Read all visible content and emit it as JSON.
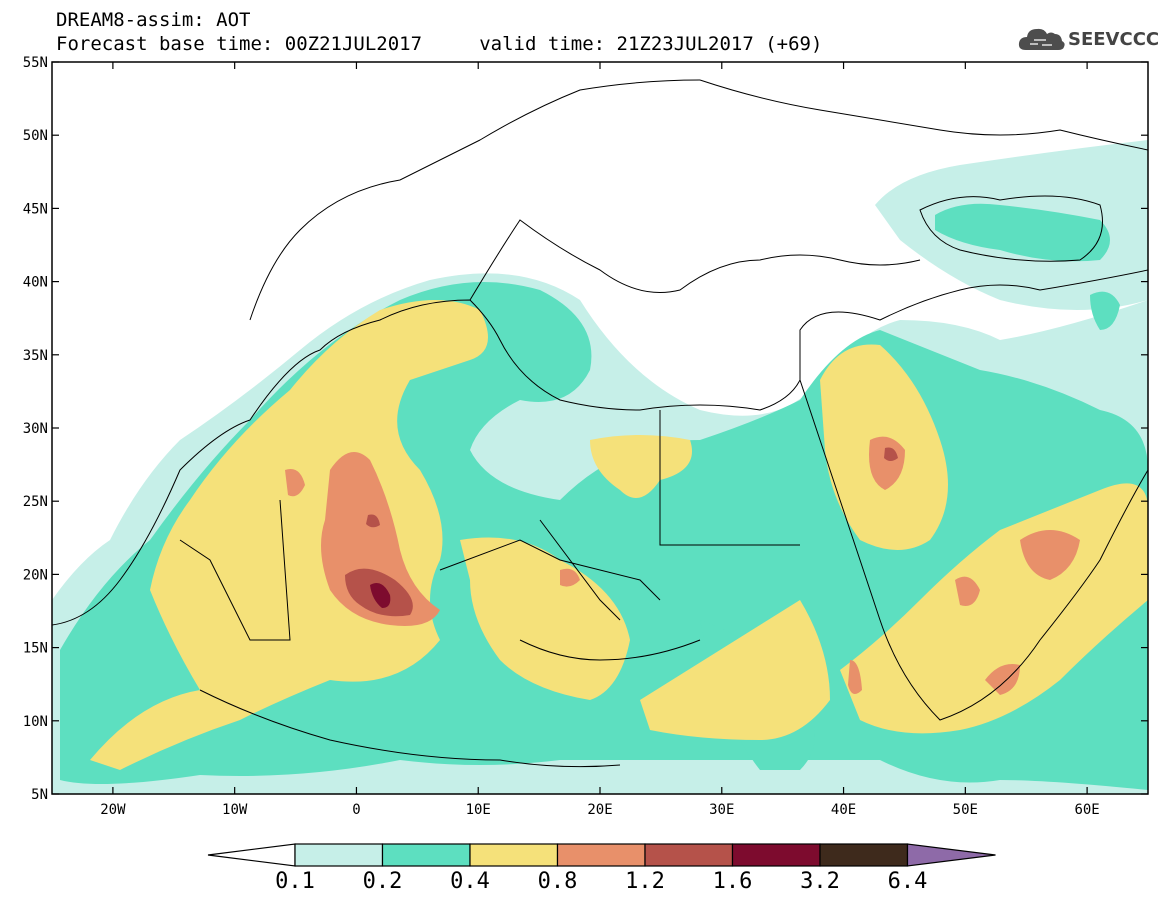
{
  "title": {
    "line1": "DREAM8-assim: AOT",
    "line2": "Forecast base time: 00Z21JUL2017     valid time: 21Z23JUL2017 (+69)"
  },
  "logo": {
    "text": "SEEVCCC",
    "icon": "cloud-icon"
  },
  "axes": {
    "y_ticks": [
      {
        "lat": 55,
        "label": "55N"
      },
      {
        "lat": 50,
        "label": "50N"
      },
      {
        "lat": 45,
        "label": "45N"
      },
      {
        "lat": 40,
        "label": "40N"
      },
      {
        "lat": 35,
        "label": "35N"
      },
      {
        "lat": 30,
        "label": "30N"
      },
      {
        "lat": 25,
        "label": "25N"
      },
      {
        "lat": 20,
        "label": "20N"
      },
      {
        "lat": 15,
        "label": "15N"
      },
      {
        "lat": 10,
        "label": "10N"
      },
      {
        "lat": 5,
        "label": "5N"
      }
    ],
    "x_ticks": [
      {
        "lon": -20,
        "label": "20W"
      },
      {
        "lon": -10,
        "label": "10W"
      },
      {
        "lon": 0,
        "label": "0"
      },
      {
        "lon": 10,
        "label": "10E"
      },
      {
        "lon": 20,
        "label": "20E"
      },
      {
        "lon": 30,
        "label": "30E"
      },
      {
        "lon": 40,
        "label": "40E"
      },
      {
        "lon": 50,
        "label": "50E"
      },
      {
        "lon": 60,
        "label": "60E"
      }
    ],
    "lon_range": [
      -25,
      65
    ],
    "lat_range": [
      5,
      55
    ]
  },
  "colorbar": {
    "labels": [
      "0.1",
      "0.2",
      "0.4",
      "0.8",
      "1.2",
      "1.6",
      "3.2",
      "6.4"
    ],
    "colors": [
      "#c6efe8",
      "#5ddfc0",
      "#f5e17a",
      "#e8906a",
      "#b5524a",
      "#7d0b2e",
      "#3e2a1c",
      "#8e6aa8"
    ],
    "under_color": "#ffffff"
  }
}
